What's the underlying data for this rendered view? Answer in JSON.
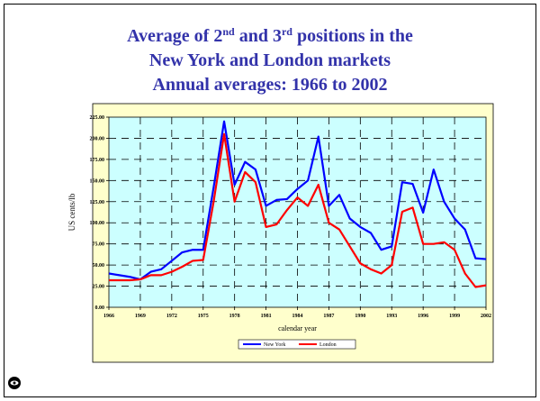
{
  "chart_data": {
    "type": "line",
    "title": [
      [
        "Average of 2",
        "nd",
        " and 3",
        "rd",
        " positions in the"
      ],
      [
        "New York and London markets"
      ],
      [
        "Annual averages: 1966 to 2002"
      ]
    ],
    "xlabel": "calendar year",
    "ylabel": "US cents/lb",
    "x": [
      1966,
      1967,
      1968,
      1969,
      1970,
      1971,
      1972,
      1973,
      1974,
      1975,
      1976,
      1977,
      1978,
      1979,
      1980,
      1981,
      1982,
      1983,
      1984,
      1985,
      1986,
      1987,
      1988,
      1989,
      1990,
      1991,
      1992,
      1993,
      1994,
      1995,
      1996,
      1997,
      1998,
      1999,
      2000,
      2001,
      2002
    ],
    "series": [
      {
        "name": "New York",
        "color": "#0000ff",
        "values": [
          40,
          38,
          36,
          33,
          42,
          45,
          55,
          65,
          68,
          68,
          142,
          220,
          145,
          172,
          163,
          120,
          127,
          128,
          140,
          150,
          202,
          120,
          133,
          105,
          95,
          88,
          68,
          72,
          148,
          146,
          112,
          163,
          125,
          105,
          92,
          58,
          57
        ]
      },
      {
        "name": "London",
        "color": "#ff0000",
        "values": [
          32,
          32,
          32,
          33,
          38,
          38,
          42,
          48,
          55,
          56,
          125,
          205,
          125,
          160,
          148,
          95,
          98,
          115,
          130,
          120,
          145,
          100,
          92,
          72,
          52,
          45,
          40,
          50,
          113,
          118,
          75,
          75,
          77,
          68,
          40,
          24,
          26
        ]
      }
    ],
    "xlim": [
      1966,
      2002
    ],
    "xticks": [
      1966,
      1969,
      1972,
      1975,
      1978,
      1981,
      1984,
      1987,
      1990,
      1993,
      1996,
      1999,
      2002
    ],
    "ylim": [
      0,
      225
    ],
    "yticks": [
      {
        "value": 0,
        "label": "0.00"
      },
      {
        "value": 25,
        "label": "25.00"
      },
      {
        "value": 50,
        "label": "50.00"
      },
      {
        "value": 75,
        "label": "75.00"
      },
      {
        "value": 100,
        "label": "100.00"
      },
      {
        "value": 125,
        "label": "125.00"
      },
      {
        "value": 150,
        "label": "150.00"
      },
      {
        "value": 175,
        "label": "175.00"
      },
      {
        "value": 200,
        "label": "200.00"
      },
      {
        "value": 225,
        "label": "225.00"
      }
    ],
    "grid": true,
    "legend": "bottom"
  }
}
